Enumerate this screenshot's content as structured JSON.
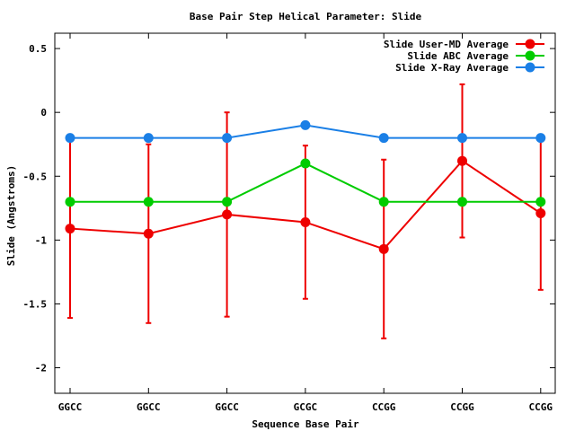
{
  "chart_data": {
    "type": "line",
    "title": "Base Pair Step Helical Parameter: Slide",
    "xlabel": "Sequence Base Pair",
    "ylabel": "Slide (Angstroms)",
    "categories": [
      "GGCC",
      "GGCC",
      "GGCC",
      "GCGC",
      "CCGG",
      "CCGG",
      "CCGG"
    ],
    "ylim": [
      -2.2,
      0.62
    ],
    "yticks": [
      -2,
      -1.5,
      -1,
      -0.5,
      0,
      0.5
    ],
    "ytick_labels": [
      "-2",
      "-1.5",
      "-1",
      "-0.5",
      "0",
      "0.5"
    ],
    "legend_position": "top-right",
    "series": [
      {
        "name": "Slide User-MD Average",
        "color": "#ee0000",
        "values": [
          -0.91,
          -0.95,
          -0.8,
          -0.86,
          -1.07,
          -0.38,
          -0.79
        ],
        "error": [
          0.7,
          0.7,
          0.8,
          0.6,
          0.7,
          0.6,
          0.6
        ]
      },
      {
        "name": "Slide ABC Average",
        "color": "#00cc00",
        "values": [
          -0.7,
          -0.7,
          -0.7,
          -0.4,
          -0.7,
          -0.7,
          -0.7
        ]
      },
      {
        "name": "Slide X-Ray Average",
        "color": "#1a7fe6",
        "values": [
          -0.2,
          -0.2,
          -0.2,
          -0.1,
          -0.2,
          -0.2,
          -0.2
        ]
      }
    ]
  }
}
